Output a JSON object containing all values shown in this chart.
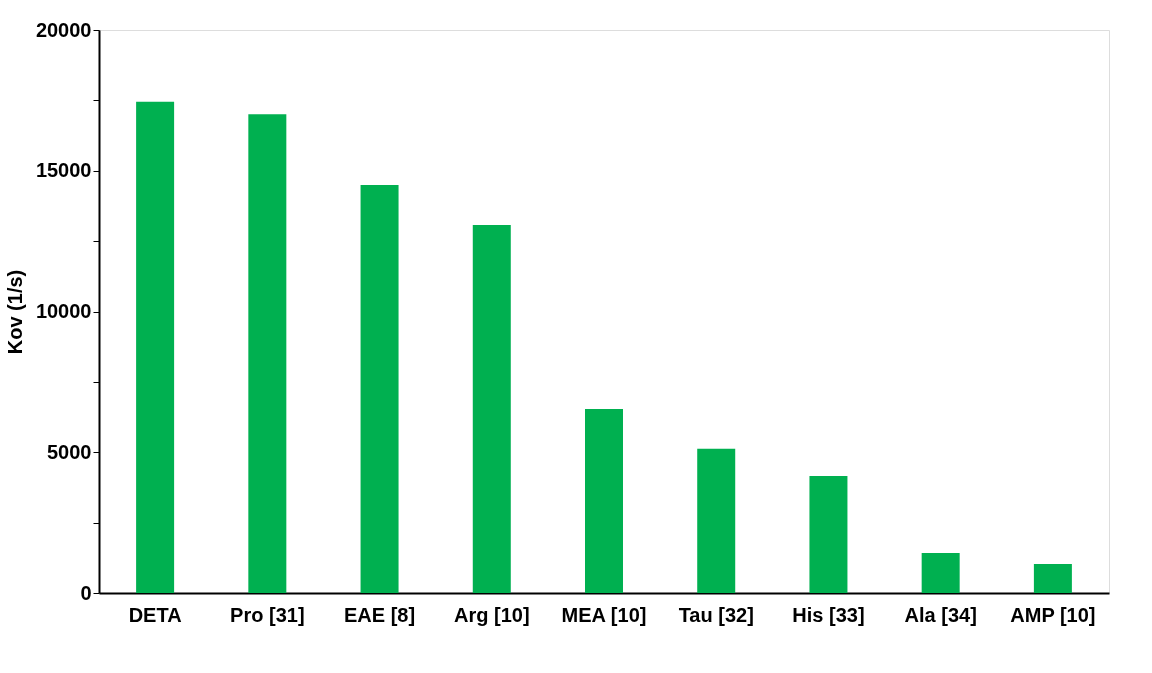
{
  "chart_data": {
    "type": "bar",
    "ylabel": "Kov (1/s)",
    "categories": [
      "DETA",
      "Pro [31]",
      "EAE [8]",
      "Arg [10]",
      "MEA [10]",
      "Tau [32]",
      "His [33]",
      "Ala [34]",
      "AMP [10]"
    ],
    "values": [
      17450,
      17010,
      14490,
      13070,
      6540,
      5120,
      4160,
      1420,
      1030
    ],
    "color": "#00b050",
    "ylim": [
      0,
      20000
    ],
    "yticks": [
      0,
      {
        "value": 2500,
        "label": null
      },
      5000,
      {
        "value": 7500,
        "label": null
      },
      10000,
      {
        "value": 12500,
        "label": null
      },
      15000,
      {
        "value": 17500,
        "label": null
      },
      20000
    ],
    "grid": false
  }
}
